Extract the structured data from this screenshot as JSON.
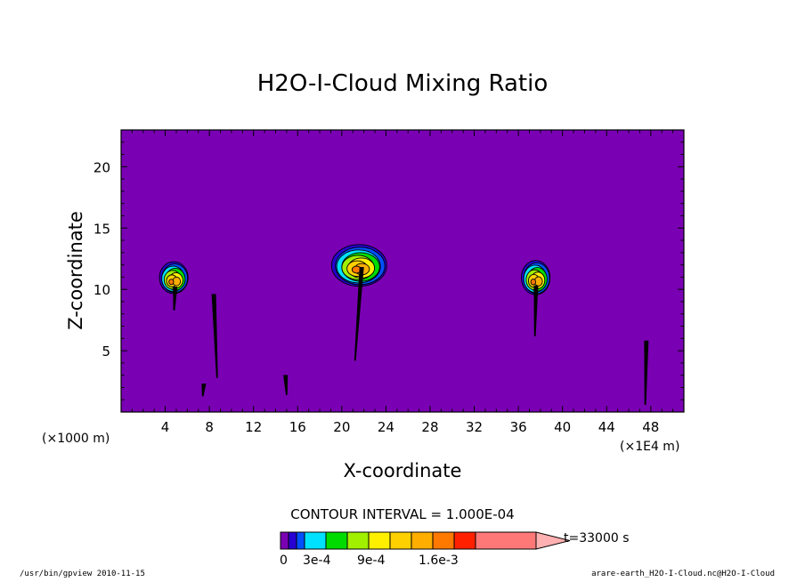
{
  "chart_data": {
    "type": "heatmap",
    "title": "H2O-I-Cloud Mixing Ratio",
    "xlabel": "X-coordinate",
    "ylabel": "Z-coordinate",
    "x_scale_label": "(×1000 m)",
    "x_extra_unit": "(×1E4 m)",
    "xlim": [
      0,
      51
    ],
    "ylim": [
      0,
      23
    ],
    "xticks": [
      4,
      8,
      12,
      16,
      20,
      24,
      28,
      32,
      36,
      40,
      44,
      48
    ],
    "yticks": [
      5,
      10,
      15,
      20
    ],
    "contour_interval_text": "CONTOUR INTERVAL = 1.000E-04",
    "time_label": "t=33000 s",
    "background_color": "#7a00b4",
    "colorbar": {
      "colors": [
        "#7a00b4",
        "#2800d2",
        "#0050ff",
        "#00e1ff",
        "#00dc00",
        "#a0f000",
        "#fff000",
        "#ffd000",
        "#ffae00",
        "#ff7800",
        "#ff2000",
        "#ff7878",
        "#ffb0b0"
      ],
      "tick_labels": [
        "0",
        "3e-4",
        "9e-4",
        "1.6e-3"
      ]
    },
    "clouds": [
      {
        "name": "cloud-1",
        "x_center": 4.8,
        "z_center": 11.0,
        "x_halfwidth": 1.3,
        "z_halfheight": 1.3,
        "peak_level": 9
      },
      {
        "name": "cloud-2",
        "x_center": 21.6,
        "z_center": 12.0,
        "x_halfwidth": 2.5,
        "z_halfheight": 1.7,
        "peak_level": 9
      },
      {
        "name": "cloud-3",
        "x_center": 37.6,
        "z_center": 11.0,
        "x_halfwidth": 1.3,
        "z_halfheight": 1.4,
        "peak_level": 9
      }
    ],
    "filaments": [
      {
        "name": "filament-1",
        "x_start": 4.9,
        "z_start": 10.2,
        "x_end": 4.8,
        "z_end": 8.3
      },
      {
        "name": "filament-2",
        "x_start": 8.4,
        "z_start": 9.6,
        "x_end": 8.7,
        "z_end": 2.8
      },
      {
        "name": "filament-3",
        "x_start": 21.8,
        "z_start": 11.8,
        "x_end": 21.2,
        "z_end": 4.2
      },
      {
        "name": "filament-4",
        "x_start": 37.6,
        "z_start": 10.3,
        "x_end": 37.5,
        "z_end": 6.2
      },
      {
        "name": "filament-5",
        "x_start": 47.6,
        "z_start": 5.8,
        "x_end": 47.5,
        "z_end": 0.6
      },
      {
        "name": "filament-6",
        "x_start": 7.5,
        "z_start": 2.3,
        "x_end": 7.4,
        "z_end": 1.3
      },
      {
        "name": "filament-7",
        "x_start": 14.9,
        "z_start": 3.0,
        "x_end": 15.0,
        "z_end": 1.4
      }
    ]
  },
  "footer": {
    "left": "/usr/bin/gpview  2010-11-15",
    "right": "arare-earth_H2O-I-Cloud.nc@H2O-I-Cloud"
  }
}
